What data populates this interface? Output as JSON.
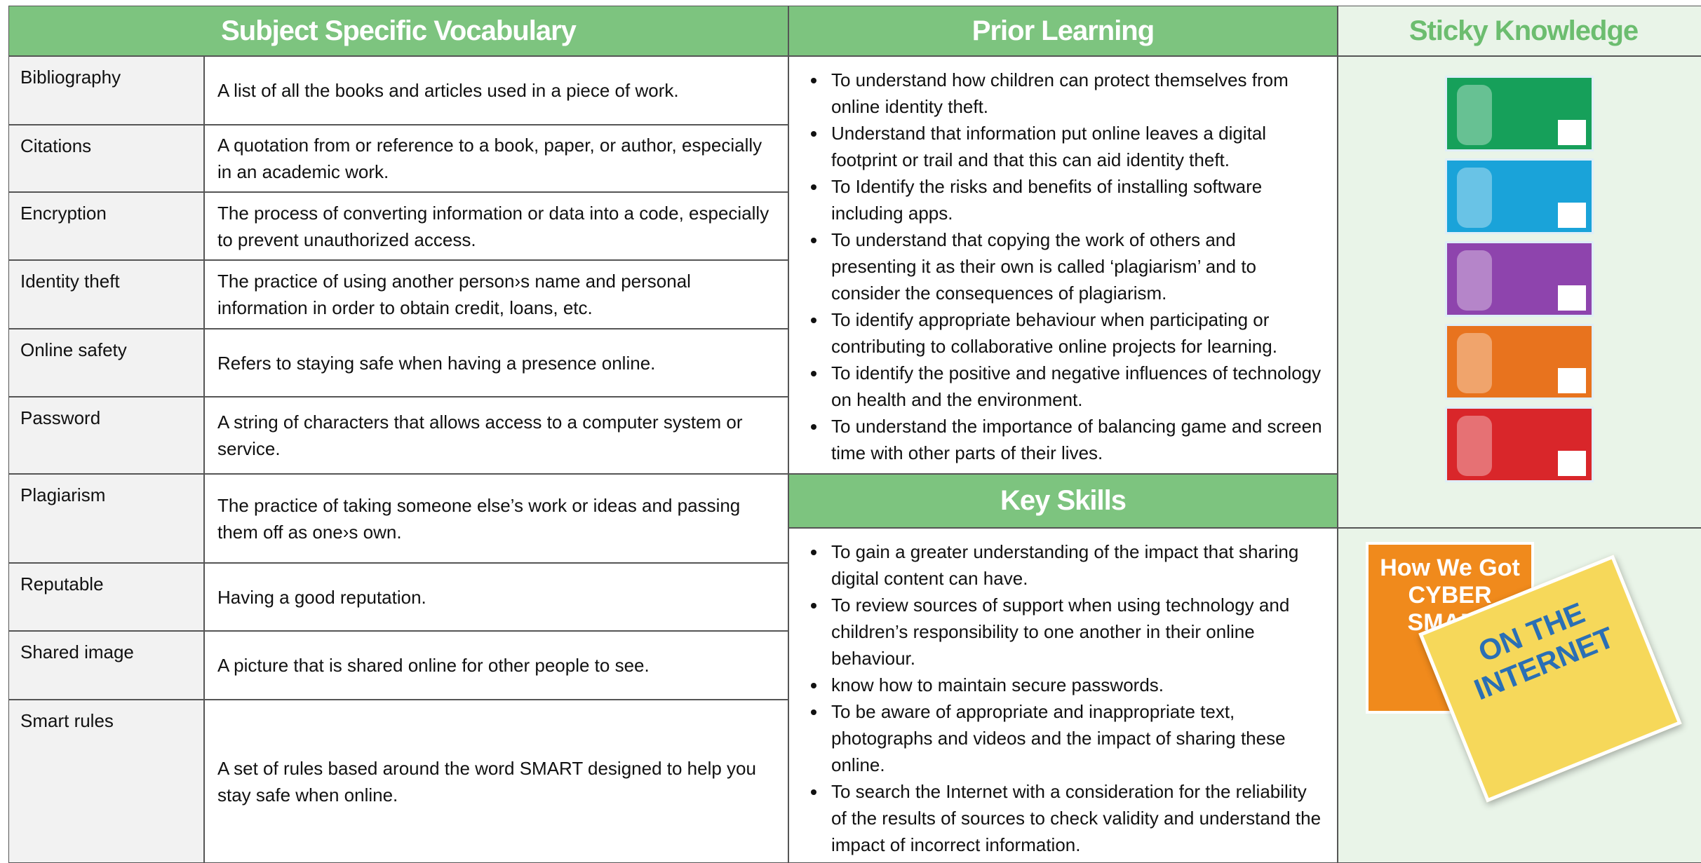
{
  "vocabulary": {
    "header": "Subject Specific Vocabulary",
    "rows": [
      [
        "Bibliography",
        "A list of all the books and articles used in a piece of work."
      ],
      [
        "Citations",
        "A quotation from or reference to a book, paper, or author, especially in an academic work."
      ],
      [
        "Encryption",
        "The process of converting information or data into a code, especially to prevent unauthorized access."
      ],
      [
        "Identity theft",
        "The practice of using another person›s name and personal information in order to obtain credit, loans, etc."
      ],
      [
        "Online safety",
        "Refers to staying safe when having a presence online."
      ],
      [
        "Password",
        "A string of characters that allows access to a computer system or service."
      ],
      [
        "Plagiarism",
        "The practice of taking someone else’s work or ideas and passing them off as one›s own."
      ],
      [
        "Reputable",
        "Having a good reputation."
      ],
      [
        "Shared image",
        "A picture that is shared online for other people to see."
      ],
      [
        "Smart rules",
        "A set of rules based around the word SMART designed to help you stay safe when online."
      ]
    ]
  },
  "prior_learning": {
    "header": "Prior Learning",
    "items": [
      "To understand how children can protect themselves from online identity theft.",
      "Understand that information put online leaves a digital footprint or trail and that this can aid identity theft.",
      "To Identify the risks and benefits of installing software including apps.",
      "To understand that copying the work of others and presenting it as their own is called ‘plagiarism’ and  to consider the consequences of plagiarism.",
      "To identify appropriate behaviour when participating or contributing to collaborative online projects for learning.",
      "To identify the positive and negative influences of technology on health and the environment.",
      "To understand the importance of balancing game and screen time with other parts of their lives."
    ]
  },
  "key_skills": {
    "header": "Key Skills",
    "items": [
      "To gain a greater understanding of the impact that sharing digital content can have.",
      "To review sources of support when using technology and children’s responsibility to one another in their online behaviour.",
      "know how to maintain secure passwords.",
      "To be aware of appropriate and inappropriate text, photographs and videos and the impact of sharing these online.",
      "To search the Internet with a consideration for the reliability of the results of sources to check validity and understand the impact of incorrect information."
    ]
  },
  "sticky_knowledge": {
    "header": "Sticky Knowledge",
    "books": [
      "How We Got CYBER SMART",
      "ON THE INTERNET"
    ]
  }
}
